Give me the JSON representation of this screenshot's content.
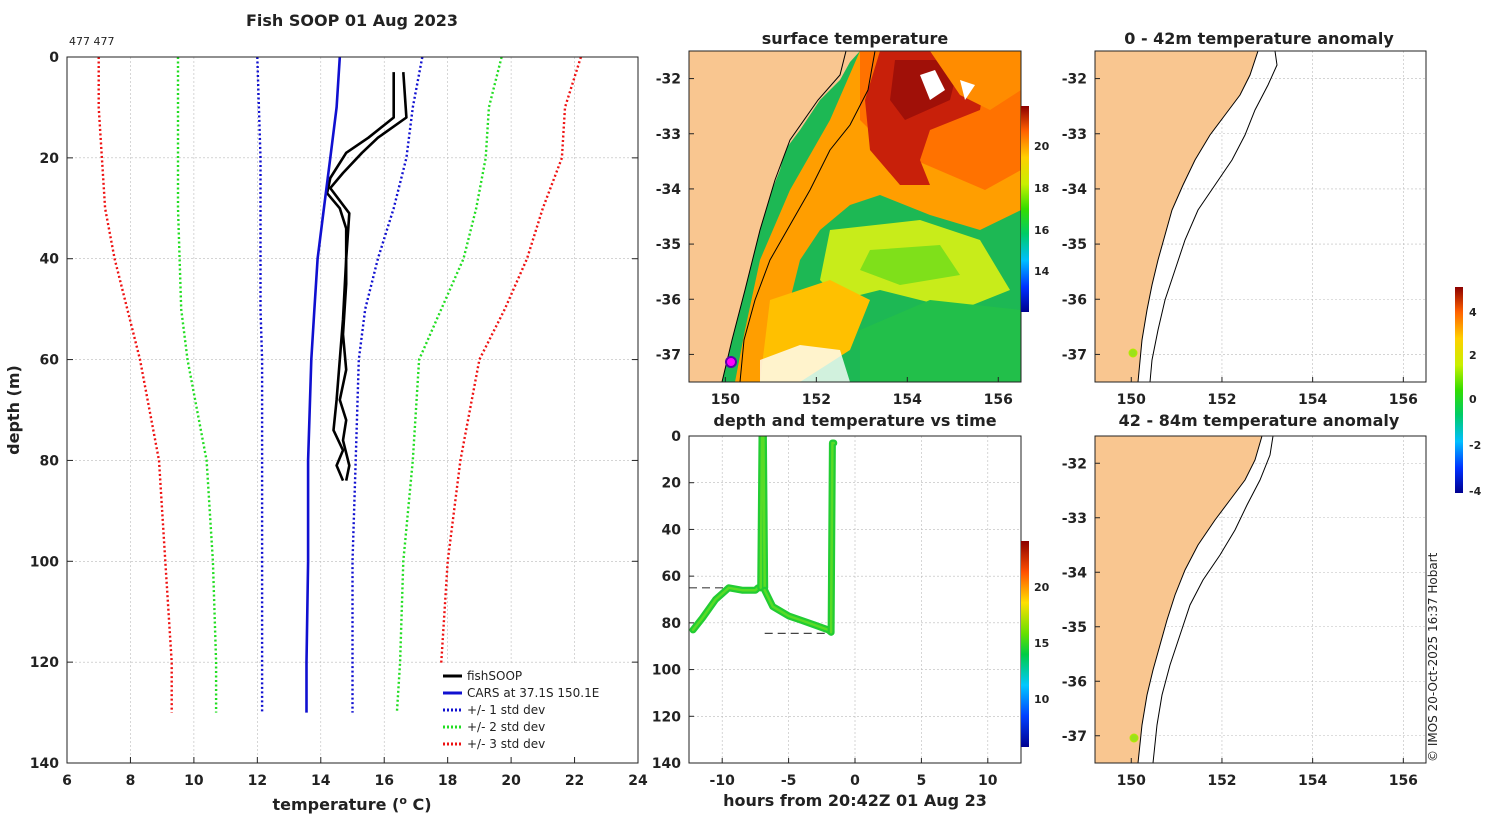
{
  "profile": {
    "title": "Fish SOOP 01 Aug 2023",
    "id_label": "477 477",
    "xlabel": "temperature (",
    "xlabel_sup": "o",
    "xlabel_end": " C)",
    "ylabel": "depth (m)",
    "x_ticks": [
      "6",
      "8",
      "10",
      "12",
      "14",
      "16",
      "18",
      "20",
      "22",
      "24"
    ],
    "y_ticks": [
      "0",
      "20",
      "40",
      "60",
      "80",
      "100",
      "120",
      "140"
    ],
    "legend": [
      "fishSOOP",
      "CARS at 37.1S 150.1E",
      "+/- 1 std dev",
      "+/- 2 std dev",
      "+/- 3 std dev"
    ]
  },
  "sst": {
    "title": "surface temperature",
    "x_ticks": [
      "150",
      "152",
      "154",
      "156"
    ],
    "y_ticks": [
      "-32",
      "-33",
      "-34",
      "-35",
      "-36",
      "-37"
    ],
    "cbar_ticks": [
      "20",
      "18",
      "16",
      "14"
    ]
  },
  "timeseries": {
    "title": "depth and temperature vs time",
    "xlabel": "hours from 20:42Z 01 Aug 23",
    "x_ticks": [
      "-10",
      "-5",
      "0",
      "5",
      "10"
    ],
    "y_ticks": [
      "0",
      "20",
      "40",
      "60",
      "80",
      "100",
      "120",
      "140"
    ],
    "cbar_ticks": [
      "20",
      "15",
      "10"
    ]
  },
  "anom1": {
    "title": "0 - 42m temperature anomaly",
    "x_ticks": [
      "150",
      "152",
      "154",
      "156"
    ],
    "y_ticks": [
      "-32",
      "-33",
      "-34",
      "-35",
      "-36",
      "-37"
    ]
  },
  "anom2": {
    "title": "42 - 84m temperature anomaly",
    "x_ticks": [
      "150",
      "152",
      "154",
      "156"
    ],
    "y_ticks": [
      "-32",
      "-33",
      "-34",
      "-35",
      "-36",
      "-37"
    ]
  },
  "anom_cbar": {
    "ticks": [
      "4",
      "2",
      "0",
      "-2",
      "-4"
    ]
  },
  "credit": "© IMOS 20-Oct-2025 16:37 Hobart",
  "chart_data": [
    {
      "type": "line",
      "title": "Fish SOOP 01 Aug 2023",
      "xlabel": "temperature (o C)",
      "ylabel": "depth (m)",
      "xlim": [
        6,
        24
      ],
      "ylim": [
        140,
        0
      ],
      "series": [
        {
          "name": "fishSOOP",
          "color": "#000000",
          "style": "solid",
          "x": [
            16.3,
            16.3,
            15.5,
            14.8,
            14.3,
            14.2,
            14.6,
            14.8,
            14.8,
            14.7,
            14.8,
            14.6,
            14.8,
            14.7,
            14.9,
            14.8
          ],
          "y": [
            3,
            12,
            16,
            19,
            24,
            27,
            30,
            34,
            45,
            55,
            62,
            68,
            72,
            76,
            81,
            84
          ]
        },
        {
          "name": "fishSOOP",
          "color": "#000000",
          "style": "solid",
          "x": [
            16.6,
            16.7,
            15.8,
            15.3,
            14.7,
            14.3,
            14.9,
            14.8,
            14.7,
            14.6,
            14.5,
            14.4,
            14.7,
            14.5,
            14.7
          ],
          "y": [
            3,
            12,
            16,
            19,
            23,
            26,
            31,
            40,
            52,
            60,
            68,
            74,
            78,
            81,
            84
          ]
        },
        {
          "name": "CARS at 37.1S 150.1E",
          "color": "#1010d0",
          "style": "solid",
          "x": [
            14.6,
            14.5,
            14.3,
            14.1,
            13.9,
            13.8,
            13.7,
            13.6,
            13.6,
            13.55,
            13.55
          ],
          "y": [
            0,
            10,
            20,
            30,
            40,
            50,
            60,
            80,
            100,
            120,
            130
          ]
        },
        {
          "name": "+/- 1 std dev",
          "color": "#1010d0",
          "style": "dotted",
          "x": [
            12.0,
            12.05,
            12.1,
            12.1,
            12.1,
            12.1,
            12.15,
            12.15,
            12.15,
            12.15,
            12.15
          ],
          "y": [
            0,
            10,
            20,
            30,
            40,
            50,
            60,
            80,
            100,
            120,
            130
          ]
        },
        {
          "name": "+/- 1 std dev",
          "color": "#1010d0",
          "style": "dotted",
          "x": [
            17.2,
            16.9,
            16.7,
            16.3,
            15.8,
            15.4,
            15.2,
            15.1,
            15.0,
            15.0,
            15.0
          ],
          "y": [
            0,
            10,
            20,
            30,
            40,
            50,
            60,
            80,
            100,
            120,
            130
          ]
        },
        {
          "name": "+/- 2 std dev",
          "color": "#22dd22",
          "style": "dotted",
          "x": [
            9.5,
            9.5,
            9.5,
            9.5,
            9.55,
            9.6,
            9.8,
            10.4,
            10.6,
            10.7,
            10.7
          ],
          "y": [
            0,
            10,
            20,
            30,
            40,
            50,
            60,
            80,
            100,
            120,
            130
          ]
        },
        {
          "name": "+/- 2 std dev",
          "color": "#22dd22",
          "style": "dotted",
          "x": [
            19.7,
            19.3,
            19.2,
            18.9,
            18.5,
            17.8,
            17.1,
            16.9,
            16.6,
            16.5,
            16.4
          ],
          "y": [
            0,
            10,
            20,
            30,
            40,
            50,
            60,
            80,
            100,
            120,
            130
          ]
        },
        {
          "name": "+/- 3 std dev",
          "color": "#ee1111",
          "style": "dotted",
          "x": [
            7.0,
            7.0,
            7.1,
            7.2,
            7.5,
            7.9,
            8.3,
            8.9,
            9.1,
            9.3,
            9.3
          ],
          "y": [
            0,
            10,
            20,
            30,
            40,
            50,
            60,
            80,
            100,
            120,
            130
          ]
        },
        {
          "name": "+/- 3 std dev",
          "color": "#ee1111",
          "style": "dotted",
          "x": [
            22.2,
            21.7,
            21.6,
            21.0,
            20.5,
            19.8,
            19.0,
            18.4,
            18.0,
            17.8,
            17.8
          ],
          "y": [
            0,
            10,
            20,
            30,
            40,
            50,
            60,
            80,
            100,
            120,
            130
          ]
        }
      ]
    },
    {
      "type": "heatmap",
      "title": "surface temperature",
      "xlim": [
        149.2,
        156.5
      ],
      "ylim": [
        -37.5,
        -31.5
      ],
      "colorbar": {
        "min": 12,
        "max": 22,
        "ticks": [
          14,
          16,
          18,
          20
        ]
      }
    },
    {
      "type": "scatter",
      "title": "depth and temperature vs time",
      "xlabel": "hours from 20:42Z 01 Aug 23",
      "xlim": [
        -12.5,
        12.5
      ],
      "ylim": [
        140,
        0
      ],
      "colorbar": {
        "min": 6,
        "max": 24,
        "ticks": [
          10,
          15,
          20
        ]
      },
      "segments": [
        {
          "x": [
            -12.2,
            -11.5,
            -10.5,
            -9.5,
            -8.5,
            -7.5,
            -7.3,
            -7.1
          ],
          "y": [
            83,
            78,
            70,
            65,
            66,
            66,
            65,
            65
          ]
        },
        {
          "x": [
            -7.1,
            -7.0,
            -6.9,
            -6.8
          ],
          "y": [
            65,
            0,
            0,
            65
          ]
        },
        {
          "x": [
            -6.8,
            -6.2,
            -5.0,
            -4.0,
            -3.0,
            -2.0,
            -1.8
          ],
          "y": [
            66,
            73,
            77,
            79,
            81,
            83,
            84
          ]
        },
        {
          "x": [
            -1.8,
            -1.7,
            -1.6
          ],
          "y": [
            84,
            3,
            3
          ]
        }
      ],
      "reference_lines": [
        {
          "x": [
            -12.5,
            -7.0
          ],
          "y": 65
        },
        {
          "x": [
            -6.8,
            -1.8
          ],
          "y": 84.5
        }
      ]
    },
    {
      "type": "heatmap",
      "title": "0 - 42m temperature anomaly",
      "xlim": [
        149.2,
        156.5
      ],
      "ylim": [
        -37.5,
        -31.5
      ],
      "points": [
        {
          "lon": 150.1,
          "lat": -37.0,
          "value": 1.3
        }
      ]
    },
    {
      "type": "heatmap",
      "title": "42 - 84m temperature anomaly",
      "xlim": [
        149.2,
        156.5
      ],
      "ylim": [
        -37.5,
        -31.5
      ],
      "points": [
        {
          "lon": 150.1,
          "lat": -37.05,
          "value": 1.3
        }
      ]
    },
    {
      "type": "heatmap",
      "title": "anomaly colorbar",
      "colorbar": {
        "min": -4,
        "max": 5,
        "ticks": [
          -4,
          -2,
          0,
          2,
          4
        ]
      }
    }
  ]
}
